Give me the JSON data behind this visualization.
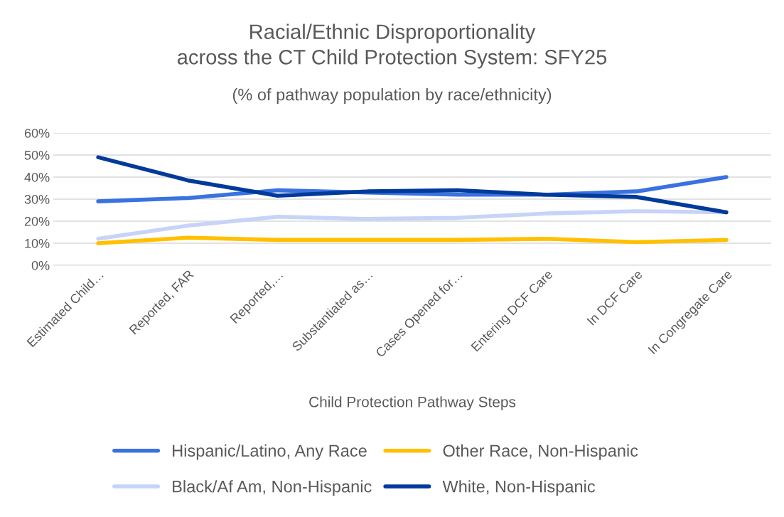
{
  "chart_data": {
    "type": "line",
    "title": "Racial/Ethnic Disproportionality\nacross the CT Child Protection System: SFY25",
    "subtitle": "(% of pathway population by race/ethnicity)",
    "xlabel": "Child Protection Pathway Steps",
    "categories": [
      "Estimated Child…",
      "Reported, FAR",
      "Reported,…",
      "Substantiated as…",
      "Cases Opened for…",
      "Entering DCF Care",
      "In DCF Care",
      "In Congregate Care"
    ],
    "series": [
      {
        "name": "Hispanic/Latino, Any Race",
        "color": "#3a72e0",
        "values": [
          29,
          30.5,
          34,
          33,
          32,
          32,
          33.5,
          40
        ]
      },
      {
        "name": "Black/Af Am, Non-Hispanic",
        "color": "#c7d3f7",
        "values": [
          12,
          18,
          22,
          21,
          21.5,
          23.5,
          24.5,
          24
        ]
      },
      {
        "name": "Other Race, Non-Hispanic",
        "color": "#ffc000",
        "values": [
          10,
          12.5,
          11.5,
          11.5,
          11.5,
          12,
          10.5,
          11.5
        ]
      },
      {
        "name": "White, Non-Hispanic",
        "color": "#003a9a",
        "values": [
          49,
          38.5,
          31.5,
          33.5,
          34,
          32,
          31,
          24
        ]
      }
    ],
    "ylim": [
      0,
      60
    ],
    "yticks": [
      {
        "value": 0,
        "label": "0%"
      },
      {
        "value": 10,
        "label": "10%"
      },
      {
        "value": 20,
        "label": "20%"
      },
      {
        "value": 30,
        "label": "30%"
      },
      {
        "value": 40,
        "label": "40%"
      },
      {
        "value": 50,
        "label": "50%"
      },
      {
        "value": 60,
        "label": "60%"
      }
    ],
    "grid": "y",
    "legend": "bottom",
    "marker": "none",
    "line_style": "solid"
  }
}
